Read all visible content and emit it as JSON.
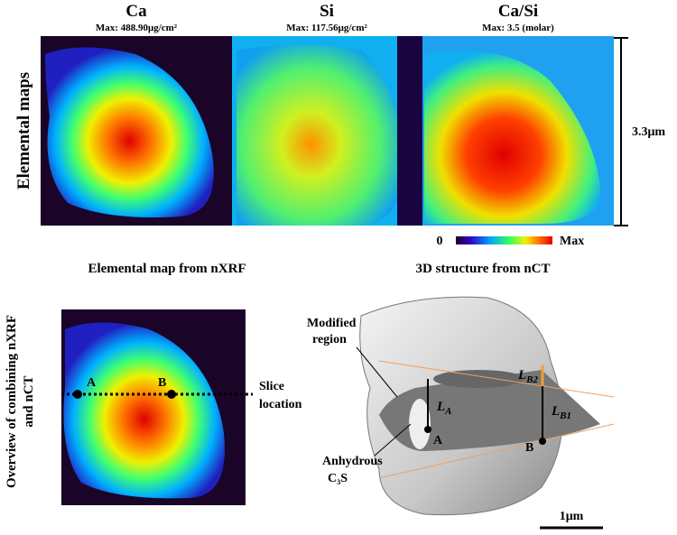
{
  "top": {
    "panels": [
      {
        "title": "Ca",
        "max": "Max: 488.90μg/cm²"
      },
      {
        "title": "Si",
        "max": "Max: 117.56μg/cm²"
      },
      {
        "title": "Ca/Si",
        "max": "Max:  3.5  (molar)"
      }
    ],
    "row_label": "Elemental maps",
    "scale": "3.3μm",
    "colorbar": {
      "min": "0",
      "max": "Max"
    }
  },
  "bottom": {
    "left_title": "Elemental map from nXRF",
    "right_title": "3D structure from nCT",
    "row_label": [
      "Overview of combining nXRF",
      "and nCT"
    ],
    "left_map": {
      "points": [
        "A",
        "B"
      ],
      "slice_label": [
        "Slice",
        "location"
      ]
    },
    "structure": {
      "modified": [
        "Modified",
        "region"
      ],
      "anhydrous": [
        "Anhydrous",
        "C₃S"
      ],
      "lengths": [
        {
          "main": "L",
          "sub": "A"
        },
        {
          "main": "L",
          "sub": "B2"
        },
        {
          "main": "L",
          "sub": "B1"
        }
      ],
      "points": [
        "A",
        "B"
      ],
      "scale": "1μm"
    }
  }
}
